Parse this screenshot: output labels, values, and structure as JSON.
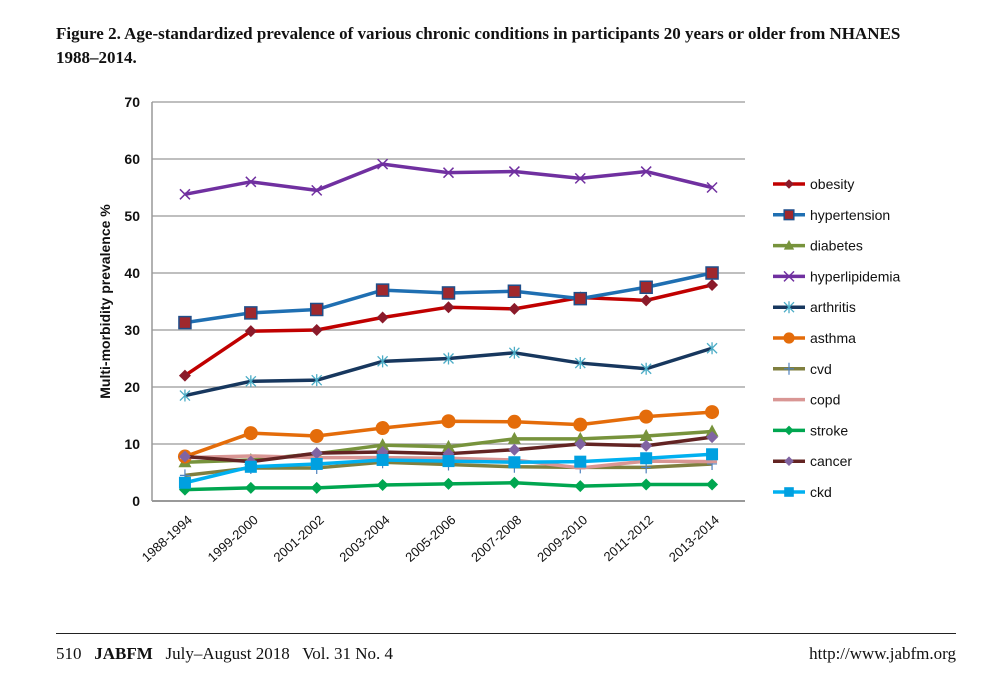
{
  "caption": "Figure 2.  Age-standardized prevalence of various chronic conditions in participants 20 years or older from NHANES 1988–2014.",
  "footer": {
    "page": "510",
    "journal": "JABFM",
    "issue": "July–August 2018   Vol. 31 No. 4",
    "url": "http://www.jabfm.org"
  },
  "chart_data": {
    "type": "line",
    "title": "",
    "xlabel": "",
    "ylabel": "Multi-morbidity prevalence %",
    "ylim": [
      0,
      70
    ],
    "yticks": [
      0,
      10,
      20,
      30,
      40,
      50,
      60,
      70
    ],
    "grid": "horizontal",
    "legend": "right",
    "categories": [
      "1988-1994",
      "1999-2000",
      "2001-2002",
      "2003-2004",
      "2005-2006",
      "2007-2008",
      "2009-2010",
      "2011-2012",
      "2013-2014"
    ],
    "series": [
      {
        "name": "obesity",
        "color": "#c00000",
        "marker": "diamond",
        "markerColor": "#8b1a2a",
        "values": [
          22,
          29.8,
          30,
          32.2,
          34,
          33.7,
          35.7,
          35.2,
          37.9
        ]
      },
      {
        "name": "hypertension",
        "color": "#1f6fb2",
        "marker": "square",
        "markerColor": "#a0282d",
        "values": [
          31.3,
          33,
          33.6,
          37,
          36.5,
          36.8,
          35.5,
          37.5,
          40
        ]
      },
      {
        "name": "diabetes",
        "color": "#77933c",
        "marker": "triangle",
        "markerColor": "#77933c",
        "values": [
          6.8,
          7.2,
          8.3,
          9.8,
          9.5,
          10.9,
          10.9,
          11.4,
          12.2
        ]
      },
      {
        "name": "hyperlipidemia",
        "color": "#7030a0",
        "marker": "x",
        "markerColor": "#7030a0",
        "values": [
          53.8,
          56,
          54.5,
          59.1,
          57.6,
          57.8,
          56.6,
          57.8,
          55
        ]
      },
      {
        "name": "arthritis",
        "color": "#17375e",
        "marker": "asterisk",
        "markerColor": "#4bacc6",
        "values": [
          18.5,
          21,
          21.2,
          24.5,
          25,
          26,
          24.2,
          23.2,
          26.8
        ]
      },
      {
        "name": "asthma",
        "color": "#e46c0a",
        "marker": "circle",
        "markerColor": "#e46c0a",
        "values": [
          7.8,
          11.9,
          11.4,
          12.8,
          14,
          13.9,
          13.4,
          14.8,
          15.6
        ]
      },
      {
        "name": "cvd",
        "color": "#7f7f3f",
        "marker": "plus",
        "markerColor": "#4f81bd",
        "values": [
          4.5,
          5.8,
          5.8,
          6.8,
          6.4,
          6.0,
          5.9,
          5.9,
          6.5
        ]
      },
      {
        "name": "copd",
        "color": "#d99694",
        "marker": "dash",
        "markerColor": "#d99694",
        "values": [
          7.6,
          7.9,
          7.6,
          7.6,
          7.5,
          7.2,
          5.8,
          7.0,
          6.9
        ]
      },
      {
        "name": "stroke",
        "color": "#00a650",
        "marker": "diamond",
        "markerColor": "#00a650",
        "values": [
          2,
          2.3,
          2.3,
          2.8,
          3,
          3.2,
          2.6,
          2.9,
          2.9
        ]
      },
      {
        "name": "cancer",
        "color": "#632423",
        "marker": "diamond",
        "markerColor": "#8064a2",
        "values": [
          7.8,
          6.9,
          8.4,
          8.6,
          8.3,
          9.0,
          10,
          9.7,
          11.2
        ]
      },
      {
        "name": "ckd",
        "color": "#00b0f0",
        "marker": "square",
        "markerColor": "#00a0e0",
        "values": [
          3.2,
          6,
          6.5,
          7.2,
          7,
          6.8,
          6.9,
          7.5,
          8.2
        ]
      }
    ]
  }
}
